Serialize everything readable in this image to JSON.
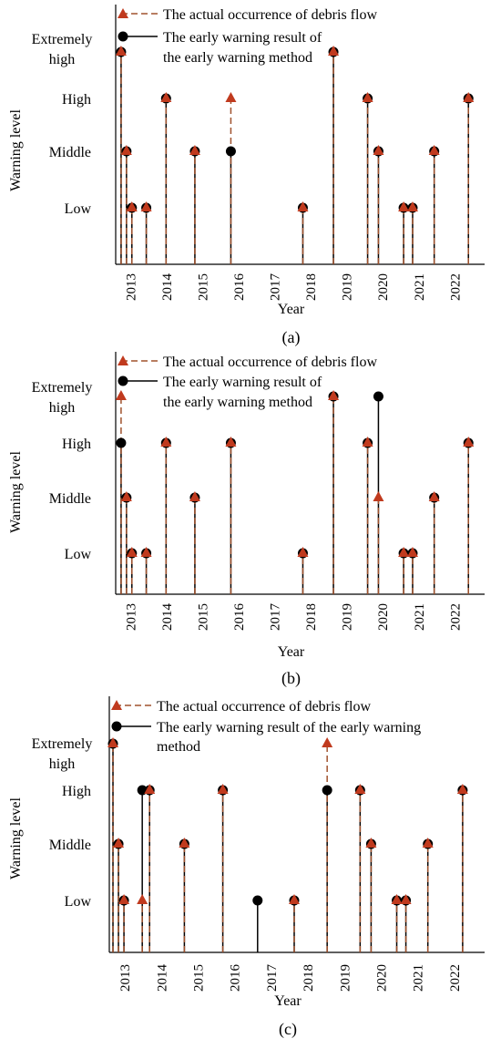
{
  "chart_data": [
    {
      "type": "stem",
      "panel_label": "(a)",
      "xlabel": "Year",
      "ylabel": "Warning level",
      "y_levels": [
        "Low",
        "Middle",
        "High",
        "Extremely high"
      ],
      "x_ticks": [
        "2013",
        "2014",
        "2015",
        "2016",
        "2017",
        "2018",
        "2019",
        "2020",
        "2021",
        "2022"
      ],
      "legend": [
        "The actual occurrence of debris flow",
        "The early warning result of the early warning method"
      ],
      "series": [
        {
          "name": "The actual occurrence of debris flow",
          "marker": "triangle",
          "x": [
            2012.45,
            2012.6,
            2012.75,
            2013.15,
            2013.7,
            2014.5,
            2015.5,
            2017.5,
            2018.35,
            2019.3,
            2019.6,
            2020.3,
            2020.55,
            2021.15,
            2022.1
          ],
          "y": [
            4,
            2,
            1,
            1,
            3,
            2,
            3,
            1,
            4,
            3,
            2,
            1,
            1,
            2,
            3
          ]
        },
        {
          "name": "The early warning result of the early warning method",
          "marker": "circle",
          "x": [
            2012.45,
            2012.6,
            2012.75,
            2013.15,
            2013.7,
            2014.5,
            2015.5,
            2017.5,
            2018.35,
            2019.3,
            2019.6,
            2020.3,
            2020.55,
            2021.15,
            2022.1
          ],
          "y": [
            4,
            2,
            1,
            1,
            3,
            2,
            2,
            1,
            4,
            3,
            2,
            1,
            1,
            2,
            3
          ]
        }
      ]
    },
    {
      "type": "stem",
      "panel_label": "(b)",
      "xlabel": "Year",
      "ylabel": "Warning level",
      "y_levels": [
        "Low",
        "Middle",
        "High",
        "Extremely high"
      ],
      "x_ticks": [
        "2013",
        "2014",
        "2015",
        "2016",
        "2017",
        "2018",
        "2019",
        "2020",
        "2021",
        "2022"
      ],
      "legend": [
        "The actual occurrence of debris flow",
        "The early warning result of the early warning method"
      ],
      "series": [
        {
          "name": "The actual occurrence of debris flow",
          "marker": "triangle",
          "x": [
            2012.45,
            2012.6,
            2012.75,
            2013.15,
            2013.7,
            2014.5,
            2015.5,
            2017.5,
            2018.35,
            2019.3,
            2019.6,
            2020.3,
            2020.55,
            2021.15,
            2022.1
          ],
          "y": [
            4,
            2,
            1,
            1,
            3,
            2,
            3,
            1,
            4,
            3,
            2,
            1,
            1,
            2,
            3
          ]
        },
        {
          "name": "The early warning result of the early warning method",
          "marker": "circle",
          "x": [
            2012.45,
            2012.6,
            2012.75,
            2013.15,
            2013.7,
            2014.5,
            2015.5,
            2017.5,
            2018.35,
            2019.3,
            2019.6,
            2020.3,
            2020.55,
            2021.15,
            2022.1
          ],
          "y": [
            3,
            2,
            1,
            1,
            3,
            2,
            3,
            1,
            4,
            3,
            4,
            1,
            1,
            2,
            3
          ]
        }
      ]
    },
    {
      "type": "stem",
      "panel_label": "(c)",
      "xlabel": "Year",
      "ylabel": "Warning level",
      "y_levels": [
        "Low",
        "Middle",
        "High",
        "Extremely high"
      ],
      "x_ticks": [
        "2013",
        "2014",
        "2015",
        "2016",
        "2017",
        "2018",
        "2019",
        "2020",
        "2021",
        "2022"
      ],
      "legend": [
        "The actual occurrence of debris flow",
        "The early warning result of the early warning method"
      ],
      "series": [
        {
          "name": "The actual occurrence of debris flow",
          "marker": "triangle",
          "x": [
            2012.4,
            2012.55,
            2012.7,
            2013.2,
            2013.4,
            2014.35,
            2015.4,
            2017.35,
            2018.25,
            2019.15,
            2019.45,
            2020.15,
            2020.4,
            2021.0,
            2021.95
          ],
          "y": [
            4,
            2,
            1,
            1,
            3,
            2,
            3,
            1,
            4,
            3,
            2,
            1,
            1,
            2,
            3
          ]
        },
        {
          "name": "The early warning result of the early warning method",
          "marker": "circle",
          "x": [
            2012.4,
            2012.55,
            2012.7,
            2013.2,
            2013.4,
            2014.35,
            2015.4,
            2016.35,
            2017.35,
            2018.25,
            2019.15,
            2019.45,
            2020.15,
            2020.4,
            2021.0,
            2021.95
          ],
          "y": [
            4,
            2,
            1,
            3,
            3,
            2,
            3,
            1,
            1,
            3,
            3,
            2,
            1,
            1,
            2,
            3
          ]
        }
      ]
    }
  ],
  "colors": {
    "actual": "#a0522d",
    "warning": "#000000",
    "triangle_fill": "#c03a1e"
  }
}
